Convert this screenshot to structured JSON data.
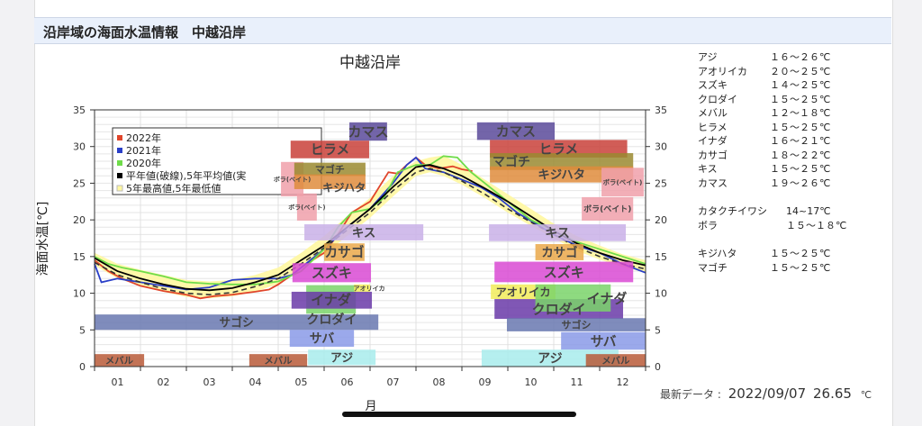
{
  "header": {
    "title": "沿岸域の海面水温情報　中越沿岸"
  },
  "fish_list": {
    "group1": [
      {
        "name": "アジ",
        "range": "１６～２６℃"
      },
      {
        "name": "アオリイカ",
        "range": "２０～２５℃"
      },
      {
        "name": "スズキ",
        "range": "１４～２５℃"
      },
      {
        "name": "クロダイ",
        "range": "１５～２５℃"
      },
      {
        "name": "メバル",
        "range": "１２～１８℃"
      },
      {
        "name": "ヒラメ",
        "range": "１５～２５℃"
      },
      {
        "name": "イナダ",
        "range": "１６～２１℃"
      },
      {
        "name": "カサゴ",
        "range": "１８～２２℃"
      },
      {
        "name": "キス",
        "range": "１５～２５℃"
      },
      {
        "name": "カマス",
        "range": "１９～２６℃"
      }
    ],
    "group2": [
      {
        "name": "カタクチイワシ",
        "range": "14~17℃"
      },
      {
        "name": "ボラ",
        "range": "１５～１８℃"
      }
    ],
    "group3": [
      {
        "name": "キジハタ",
        "range": "１５～２５℃"
      },
      {
        "name": "マゴチ",
        "range": "１５～２５℃"
      }
    ]
  },
  "latest": {
    "label": "最新データ :",
    "date": "2022/09/07",
    "value": "26.65",
    "unit": "℃"
  },
  "chart_data": {
    "type": "line",
    "title": "中越沿岸",
    "xlabel": "月",
    "ylabel": "海面水温[℃]",
    "xlim": [
      1,
      13
    ],
    "ylim": [
      0,
      35
    ],
    "yticks": [
      0,
      5,
      10,
      15,
      20,
      25,
      30,
      35
    ],
    "xtick_labels": [
      "01",
      "02",
      "03",
      "04",
      "05",
      "06",
      "07",
      "08",
      "09",
      "10",
      "11",
      "12"
    ],
    "grid": true,
    "legend_position": "top-left",
    "legend": [
      {
        "label": "2022年",
        "color": "#e0452b"
      },
      {
        "label": "2021年",
        "color": "#2a3fc8"
      },
      {
        "label": "2020年",
        "color": "#6fdc4a"
      },
      {
        "label": "平年値(破線),5年平均値(実",
        "color": "#000000"
      },
      {
        "label": "5年最高値,5年最低値",
        "color": "#fff7a0"
      }
    ],
    "series": [
      {
        "name": "2022年",
        "color": "#e0452b",
        "points": [
          [
            1,
            14.5
          ],
          [
            1.3,
            13
          ],
          [
            1.6,
            12
          ],
          [
            2,
            11
          ],
          [
            2.5,
            10.3
          ],
          [
            3,
            9.8
          ],
          [
            3.3,
            9.3
          ],
          [
            3.6,
            9.6
          ],
          [
            4,
            9.8
          ],
          [
            4.5,
            10.2
          ],
          [
            4.8,
            10.5
          ],
          [
            5,
            11.2
          ],
          [
            5.3,
            12.5
          ],
          [
            5.6,
            14
          ],
          [
            6,
            15.5
          ],
          [
            6.3,
            18
          ],
          [
            6.6,
            21
          ],
          [
            7,
            22.5
          ],
          [
            7.2,
            24.5
          ],
          [
            7.4,
            26.5
          ],
          [
            7.6,
            26.3
          ],
          [
            7.8,
            27.5
          ],
          [
            8,
            28.5
          ],
          [
            8.2,
            27.5
          ],
          [
            8.5,
            27
          ],
          [
            8.8,
            27.3
          ],
          [
            9,
            26.9
          ],
          [
            9.23,
            26.65
          ]
        ]
      },
      {
        "name": "2021年",
        "color": "#2a3fc8",
        "points": [
          [
            1,
            14
          ],
          [
            1.15,
            11.5
          ],
          [
            1.5,
            12
          ],
          [
            2,
            11.5
          ],
          [
            2.5,
            11
          ],
          [
            3,
            10.5
          ],
          [
            3.5,
            10.8
          ],
          [
            4,
            11.8
          ],
          [
            4.5,
            12
          ],
          [
            5,
            12
          ],
          [
            5.3,
            12.5
          ],
          [
            5.6,
            14
          ],
          [
            6,
            16
          ],
          [
            6.5,
            19
          ],
          [
            7,
            21.5
          ],
          [
            7.5,
            25
          ],
          [
            7.8,
            27.5
          ],
          [
            8,
            28.5
          ],
          [
            8.2,
            27
          ],
          [
            8.6,
            26.5
          ],
          [
            9,
            25.5
          ],
          [
            9.4,
            24.5
          ],
          [
            9.8,
            23
          ],
          [
            10.2,
            21
          ],
          [
            10.6,
            19.5
          ],
          [
            11,
            18
          ],
          [
            11.5,
            16.5
          ],
          [
            12,
            15.5
          ],
          [
            12.5,
            14
          ],
          [
            13,
            12.8
          ]
        ]
      },
      {
        "name": "2020年",
        "color": "#6fdc4a",
        "points": [
          [
            1,
            15
          ],
          [
            1.3,
            14
          ],
          [
            1.6,
            13.5
          ],
          [
            2,
            13
          ],
          [
            2.5,
            12.3
          ],
          [
            3,
            11.5
          ],
          [
            3.5,
            11.3
          ],
          [
            4,
            11.2
          ],
          [
            4.5,
            11.2
          ],
          [
            5,
            11.6
          ],
          [
            5.5,
            13
          ],
          [
            6,
            16
          ],
          [
            6.3,
            19
          ],
          [
            6.6,
            21
          ],
          [
            7,
            21.5
          ],
          [
            7.3,
            23
          ],
          [
            7.6,
            26.5
          ],
          [
            8,
            27.5
          ],
          [
            8.3,
            27.5
          ],
          [
            8.6,
            28.7
          ],
          [
            8.9,
            28.5
          ],
          [
            9.2,
            26.5
          ],
          [
            9.6,
            24.5
          ],
          [
            10,
            22.5
          ],
          [
            10.5,
            20
          ],
          [
            11,
            18.5
          ],
          [
            11.5,
            17
          ],
          [
            12,
            16
          ],
          [
            12.5,
            15
          ],
          [
            13,
            14
          ]
        ]
      },
      {
        "name": "5年平均値",
        "color": "#000000",
        "points": [
          [
            1,
            14.8
          ],
          [
            1.5,
            13
          ],
          [
            2,
            12
          ],
          [
            2.5,
            11.2
          ],
          [
            3,
            10.6
          ],
          [
            3.5,
            10.4
          ],
          [
            4,
            10.7
          ],
          [
            4.5,
            11.5
          ],
          [
            5,
            12.5
          ],
          [
            5.5,
            14.5
          ],
          [
            6,
            16.5
          ],
          [
            6.5,
            19
          ],
          [
            7,
            21.5
          ],
          [
            7.5,
            24.5
          ],
          [
            8,
            27.2
          ],
          [
            8.3,
            27.5
          ],
          [
            8.6,
            27
          ],
          [
            9,
            26
          ],
          [
            9.5,
            24.3
          ],
          [
            10,
            22.5
          ],
          [
            10.5,
            20.5
          ],
          [
            11,
            18.5
          ],
          [
            11.5,
            16.8
          ],
          [
            12,
            15.5
          ],
          [
            12.5,
            14.5
          ],
          [
            13,
            13.8
          ]
        ]
      },
      {
        "name": "平年値",
        "color": "#333333",
        "dashed": true,
        "points": [
          [
            1,
            14.2
          ],
          [
            1.5,
            12.5
          ],
          [
            2,
            11.5
          ],
          [
            2.5,
            10.6
          ],
          [
            3,
            10
          ],
          [
            3.5,
            9.8
          ],
          [
            4,
            10.1
          ],
          [
            4.5,
            10.9
          ],
          [
            5,
            12
          ],
          [
            5.5,
            14
          ],
          [
            6,
            16.2
          ],
          [
            6.5,
            18.6
          ],
          [
            7,
            21
          ],
          [
            7.5,
            24
          ],
          [
            8,
            26.5
          ],
          [
            8.3,
            27
          ],
          [
            8.6,
            26.5
          ],
          [
            9,
            25.3
          ],
          [
            9.5,
            23.5
          ],
          [
            10,
            21.5
          ],
          [
            10.5,
            19.7
          ],
          [
            11,
            18
          ],
          [
            11.5,
            16.3
          ],
          [
            12,
            15
          ],
          [
            12.5,
            14
          ],
          [
            13,
            13.3
          ]
        ]
      }
    ],
    "range_band": {
      "color": "#fff7a0",
      "x": [
        1,
        1.5,
        2,
        2.5,
        3,
        3.5,
        4,
        4.5,
        5,
        5.5,
        6,
        6.5,
        7,
        7.5,
        8,
        8.3,
        8.6,
        9,
        9.5,
        10,
        10.5,
        11,
        11.5,
        12,
        12.5,
        13
      ],
      "max": [
        15.5,
        14,
        13.2,
        12.5,
        11.8,
        11.6,
        11.8,
        12.5,
        13.5,
        15.5,
        17.8,
        20.5,
        23,
        26,
        28,
        28.5,
        28.8,
        27.5,
        25.5,
        23.5,
        21.5,
        19.5,
        17.8,
        16.5,
        15.3,
        14.5
      ],
      "min": [
        13.8,
        12,
        11,
        10.2,
        9.5,
        9.3,
        9.6,
        10.2,
        11.3,
        13.3,
        15.3,
        17.8,
        20.3,
        23.2,
        26,
        26.5,
        26,
        24.8,
        23,
        21,
        19.2,
        17.5,
        15.8,
        14.6,
        13.6,
        12.8
      ]
    },
    "fish_bands": [
      {
        "label": "メバル",
        "color": "#b85a38",
        "x": [
          1,
          2.08
        ],
        "y": [
          0,
          1.7
        ]
      },
      {
        "label": "メバル",
        "color": "#b85a38",
        "x": [
          4.37,
          5.63
        ],
        "y": [
          0,
          1.7
        ]
      },
      {
        "label": "サゴシ",
        "color": "#6878b0",
        "x": [
          1,
          7.18
        ],
        "y": [
          5,
          7.1
        ]
      },
      {
        "label": "カマス",
        "color": "#5b4a9a",
        "x": [
          6.55,
          7.37
        ],
        "y": [
          30.8,
          33.3
        ]
      },
      {
        "label": "ヒラメ",
        "color": "#c9413a",
        "x": [
          5.27,
          6.98
        ],
        "y": [
          28.4,
          30.8
        ]
      },
      {
        "label": "ボラ(ベイト)",
        "color": "#f0a0aa",
        "x": [
          5.06,
          5.55
        ],
        "y": [
          23.2,
          27.9
        ]
      },
      {
        "label": "マゴチ",
        "color": "#9a8a30",
        "x": [
          5.35,
          6.9
        ],
        "y": [
          26,
          27.8
        ]
      },
      {
        "label": "キジハタ",
        "color": "#df8c3c",
        "x": [
          5.35,
          6.9
        ],
        "y": [
          24.2,
          26.2
        ]
      },
      {
        "label": "ボラ(ベイト)",
        "color": "#f0a0aa",
        "x": [
          5.41,
          5.84
        ],
        "y": [
          19.9,
          23.6
        ]
      },
      {
        "label": "キス",
        "color": "#c9b0e8",
        "x": [
          5.57,
          8.16
        ],
        "y": [
          17.2,
          19.4
        ]
      },
      {
        "label": "カサゴ",
        "color": "#eaa84a",
        "x": [
          6,
          6.88
        ],
        "y": [
          14.4,
          16.8
        ]
      },
      {
        "label": "スズキ",
        "color": "#d94ad4",
        "x": [
          5.31,
          7.02
        ],
        "y": [
          11.5,
          14.1
        ]
      },
      {
        "label": "イナダ",
        "color": "#7ad46a",
        "x": [
          5.61,
          6.69
        ],
        "y": [
          7.2,
          11.1
        ]
      },
      {
        "label": "アオリイカ",
        "color": "#f2ec5a",
        "x": [
          6.65,
          7
        ],
        "y": [
          10.2,
          11.2
        ]
      },
      {
        "label": "クロダイ",
        "color": "#6a3aa8",
        "x": [
          5.29,
          7.04
        ],
        "y": [
          7.9,
          10.2
        ]
      },
      {
        "label": "サバ",
        "color": "#8a9ae8",
        "x": [
          5.25,
          6.65
        ],
        "y": [
          2.7,
          5
        ]
      },
      {
        "label": "アジ",
        "color": "#a8ecec",
        "x": [
          5.65,
          7.12
        ],
        "y": [
          0.2,
          2.3
        ]
      },
      {
        "label": "カマス",
        "color": "#5b4a9a",
        "x": [
          9.33,
          11.02
        ],
        "y": [
          30.9,
          33.3
        ]
      },
      {
        "label": "ヒラメ",
        "color": "#c9413a",
        "x": [
          9.61,
          12.6
        ],
        "y": [
          28.5,
          30.9
        ]
      },
      {
        "label": "マゴチ",
        "color": "#9a8a30",
        "x": [
          9.61,
          12.73
        ],
        "y": [
          26.8,
          29.1
        ]
      },
      {
        "label": "キジハタ",
        "color": "#df8c3c",
        "x": [
          9.61,
          12.73
        ],
        "y": [
          25.1,
          27.3
        ]
      },
      {
        "label": "ボラ(ベイト)",
        "color": "#f0a0aa",
        "x": [
          12.04,
          12.96
        ],
        "y": [
          23.2,
          27.1
        ]
      },
      {
        "label": "ボラ(ベイト)",
        "color": "#f0a0aa",
        "x": [
          11.61,
          12.73
        ],
        "y": [
          19.9,
          23.1
        ]
      },
      {
        "label": "キス",
        "color": "#c9b0e8",
        "x": [
          9.59,
          12.57
        ],
        "y": [
          17.1,
          19.4
        ]
      },
      {
        "label": "カサゴ",
        "color": "#eaa84a",
        "x": [
          10.6,
          11.65
        ],
        "y": [
          14.5,
          16.7
        ]
      },
      {
        "label": "スズキ",
        "color": "#d94ad4",
        "x": [
          9.71,
          12.73
        ],
        "y": [
          11.5,
          14.3
        ]
      },
      {
        "label": "アオリイカ",
        "color": "#f2ec5a",
        "x": [
          9.63,
          11.04
        ],
        "y": [
          9.2,
          11.2
        ]
      },
      {
        "label": "クロダイ",
        "color": "#6a3aa8",
        "x": [
          9.71,
          12.51
        ],
        "y": [
          6.5,
          9.2
        ]
      },
      {
        "label": "イナダ",
        "color": "#7ad46a",
        "x": [
          10.6,
          12.24
        ],
        "y": [
          7.5,
          11.2
        ]
      },
      {
        "label": "サゴシ",
        "color": "#6878b0",
        "x": [
          9.98,
          13
        ],
        "y": [
          4.8,
          6.6
        ]
      },
      {
        "label": "サバ",
        "color": "#8a9ae8",
        "x": [
          11.16,
          13
        ],
        "y": [
          2.3,
          4.7
        ]
      },
      {
        "label": "アジ",
        "color": "#a8ecec",
        "x": [
          9.43,
          12.41
        ],
        "y": [
          0,
          2.3
        ]
      },
      {
        "label": "メバル",
        "color": "#b85a38",
        "x": [
          11.7,
          13
        ],
        "y": [
          0,
          1.7
        ]
      }
    ]
  }
}
